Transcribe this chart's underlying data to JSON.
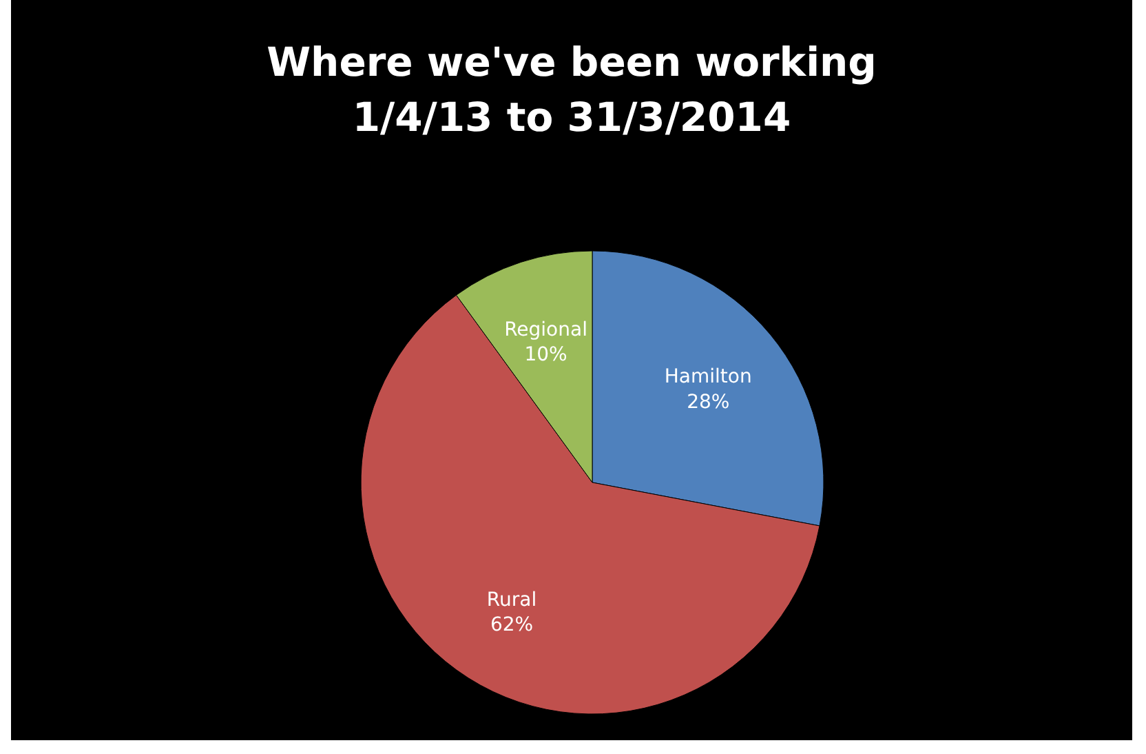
{
  "chart_data": {
    "type": "pie",
    "title": "Where we've been working\n1/4/13 to 31/3/2014",
    "categories": [
      "Hamilton",
      "Rural",
      "Regional"
    ],
    "values": [
      28,
      62,
      10
    ],
    "value_labels": [
      "28%",
      "62%",
      "10%"
    ],
    "colors": [
      "#4f81bd",
      "#c0504d",
      "#9bbb59"
    ]
  }
}
